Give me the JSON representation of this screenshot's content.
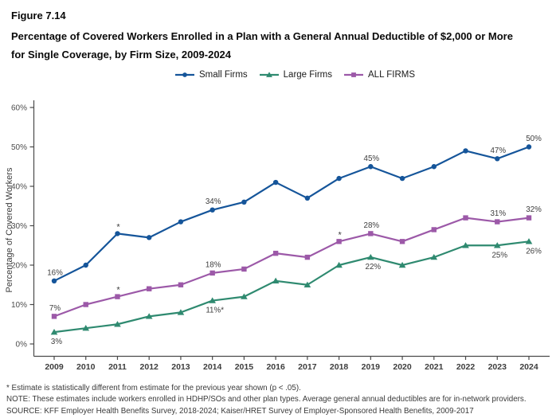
{
  "figure_label": "Figure 7.14",
  "title": "Percentage of Covered Workers Enrolled in a Plan with a General Annual Deductible of $2,000 or More for Single Coverage, by Firm Size, 2009-2024",
  "colors": {
    "small_firms": "#15559a",
    "large_firms": "#2f8a70",
    "all_firms": "#9c59a8",
    "axis": "#4a4a4a",
    "label_text": "#3d3d3d"
  },
  "chart_data": {
    "type": "line",
    "x": [
      "2009",
      "2010",
      "2011",
      "2012",
      "2013",
      "2014",
      "2015",
      "2016",
      "2017",
      "2018",
      "2019",
      "2020",
      "2021",
      "2022",
      "2023",
      "2024"
    ],
    "ylabel": "Percentage of Covered Workers",
    "ylim": [
      0,
      60
    ],
    "yticks": [
      "0%",
      "10%",
      "20%",
      "30%",
      "40%",
      "50%",
      "60%"
    ],
    "grid": false,
    "legend_position": "top",
    "series": [
      {
        "name": "Small Firms",
        "marker": "circle",
        "color": "#15559a",
        "values": [
          16,
          20,
          28,
          27,
          31,
          34,
          36,
          41,
          37,
          42,
          45,
          42,
          45,
          49,
          47,
          50
        ]
      },
      {
        "name": "Large Firms",
        "marker": "triangle",
        "color": "#2f8a70",
        "values": [
          3,
          4,
          5,
          7,
          8,
          11,
          12,
          16,
          15,
          20,
          22,
          20,
          22,
          25,
          25,
          26
        ]
      },
      {
        "name": "ALL FIRMS",
        "marker": "square",
        "color": "#9c59a8",
        "values": [
          7,
          10,
          12,
          14,
          15,
          18,
          19,
          23,
          22,
          26,
          28,
          26,
          29,
          32,
          31,
          32
        ]
      }
    ],
    "annotations": [
      {
        "series": 0,
        "x": "2009",
        "text": "16%",
        "placement": "above"
      },
      {
        "series": 0,
        "x": "2011",
        "text": "*",
        "placement": "above"
      },
      {
        "series": 0,
        "x": "2014",
        "text": "34%",
        "placement": "above"
      },
      {
        "series": 0,
        "x": "2019",
        "text": "45%",
        "placement": "above"
      },
      {
        "series": 0,
        "x": "2023",
        "text": "47%",
        "placement": "above"
      },
      {
        "series": 0,
        "x": "2024",
        "text": "50%",
        "placement": "above",
        "dx": 6
      },
      {
        "series": 2,
        "x": "2009",
        "text": "7%",
        "placement": "above"
      },
      {
        "series": 2,
        "x": "2011",
        "text": "*",
        "placement": "above"
      },
      {
        "series": 2,
        "x": "2014",
        "text": "18%",
        "placement": "above"
      },
      {
        "series": 2,
        "x": "2018",
        "text": "*",
        "placement": "above"
      },
      {
        "series": 2,
        "x": "2019",
        "text": "28%",
        "placement": "above"
      },
      {
        "series": 2,
        "x": "2023",
        "text": "31%",
        "placement": "above"
      },
      {
        "series": 2,
        "x": "2024",
        "text": "32%",
        "placement": "above",
        "dx": 6
      },
      {
        "series": 1,
        "x": "2009",
        "text": "3%",
        "placement": "below"
      },
      {
        "series": 1,
        "x": "2014",
        "text": "11%*",
        "placement": "below"
      },
      {
        "series": 1,
        "x": "2019",
        "text": "22%",
        "placement": "below"
      },
      {
        "series": 1,
        "x": "2023",
        "text": "25%",
        "placement": "below"
      },
      {
        "series": 1,
        "x": "2024",
        "text": "26%",
        "placement": "below",
        "dx": 6
      }
    ]
  },
  "footnotes": [
    "* Estimate is statistically different from estimate for the previous year shown (p < .05).",
    "NOTE: These estimates include workers enrolled in HDHP/SOs and other plan types. Average general annual deductibles are for in-network providers.",
    "SOURCE: KFF Employer Health Benefits Survey, 2018-2024; Kaiser/HRET Survey of Employer-Sponsored Health Benefits, 2009-2017"
  ]
}
